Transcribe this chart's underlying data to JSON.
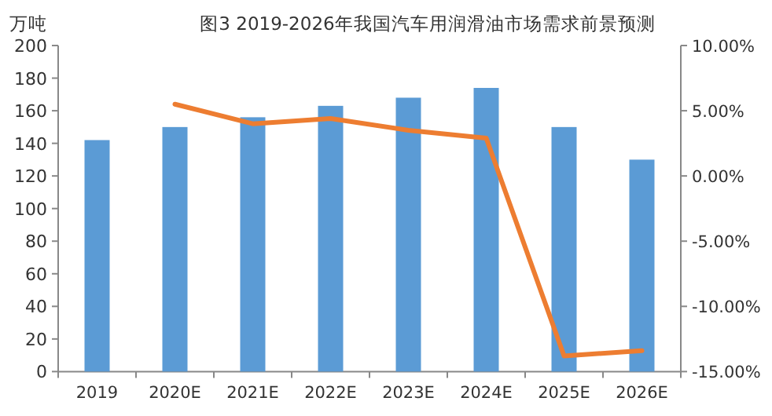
{
  "chart_data": {
    "type": "bar",
    "title": "图3 2019-2026年我国汽车用润滑油市场需求前景预测",
    "ylabel": "万吨",
    "categories": [
      "2019",
      "2020E",
      "2021E",
      "2022E",
      "2023E",
      "2024E",
      "2025E",
      "2026E"
    ],
    "series": [
      {
        "color": "#5b9bd5",
        "values": [
          142,
          150,
          156,
          163,
          168,
          174,
          150,
          130
        ]
      },
      {
        "type": "line",
        "axis": "y2",
        "color": "#ed7d31",
        "marker": "none",
        "values": [
          null,
          5.5,
          4.0,
          4.4,
          3.5,
          2.9,
          -13.8,
          -13.4
        ]
      }
    ],
    "ylim": [
      0,
      200
    ],
    "yticks": [
      0,
      20,
      40,
      60,
      80,
      100,
      120,
      140,
      160,
      180,
      200
    ],
    "y2lim": [
      -15,
      10
    ],
    "y2ticks": [
      {
        "value": -15,
        "label": "-15.00%"
      },
      {
        "value": -10,
        "label": "-10.00%"
      },
      {
        "value": -5,
        "label": "-5.00%"
      },
      {
        "value": 0,
        "label": "0.00%"
      },
      {
        "value": 5,
        "label": "5.00%"
      },
      {
        "value": 10,
        "label": "10.00%"
      }
    ]
  }
}
